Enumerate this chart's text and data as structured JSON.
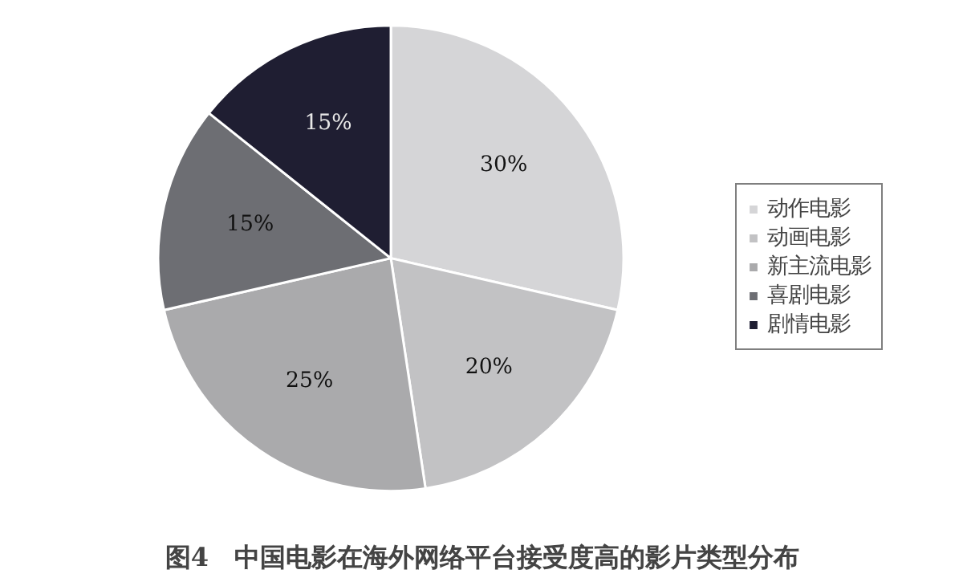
{
  "chart_data": {
    "type": "pie",
    "title": "图4　中国电影在海外网络平台接受度高的影片类型分布",
    "categories": [
      "动作电影",
      "动画电影",
      "新主流电影",
      "喜剧电影",
      "剧情电影"
    ],
    "values": [
      30,
      20,
      25,
      15,
      15
    ],
    "colors": [
      "#d5d5d7",
      "#c2c2c4",
      "#aaaaac",
      "#6d6e73",
      "#1f1e32"
    ],
    "value_labels": [
      "30%",
      "20%",
      "25%",
      "15%",
      "15%"
    ],
    "legend": "right"
  }
}
